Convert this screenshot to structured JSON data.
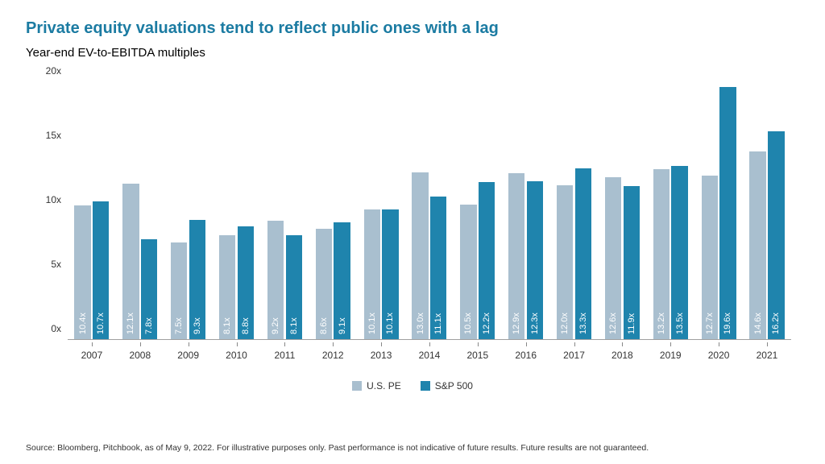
{
  "title": "Private equity valuations tend to reflect public ones with a lag",
  "subtitle": "Year-end EV-to-EBITDA multiples",
  "title_color": "#1b7ba2",
  "footnote": "Source: Bloomberg, Pitchbook, as of May 9, 2022. For illustrative purposes only. Past performance is not indicative of future results. Future results are not guaranteed.",
  "chart": {
    "type": "bar",
    "ylim": [
      0,
      20
    ],
    "ytick_step": 5,
    "ytick_suffix": "x",
    "value_suffix": "x",
    "background_color": "#ffffff",
    "axis_color": "#888888",
    "series": [
      {
        "name": "U.S. PE",
        "color": "#a9bfcf"
      },
      {
        "name": "S&P 500",
        "color": "#1f84ad"
      }
    ],
    "categories": [
      "2007",
      "2008",
      "2009",
      "2010",
      "2011",
      "2012",
      "2013",
      "2014",
      "2015",
      "2016",
      "2017",
      "2018",
      "2019",
      "2020",
      "2021"
    ],
    "data": {
      "us_pe": [
        10.4,
        12.1,
        7.5,
        8.1,
        9.2,
        8.6,
        10.1,
        13.0,
        10.5,
        12.9,
        12.0,
        12.6,
        13.2,
        12.7,
        14.6
      ],
      "sp500": [
        10.7,
        7.8,
        9.3,
        8.8,
        8.1,
        9.1,
        10.1,
        11.1,
        12.2,
        12.3,
        13.3,
        11.9,
        13.5,
        19.6,
        16.2
      ]
    },
    "label_fontsize": 11,
    "axis_fontsize": 12,
    "title_fontsize": 20,
    "bar_label_color": "#ffffff"
  }
}
